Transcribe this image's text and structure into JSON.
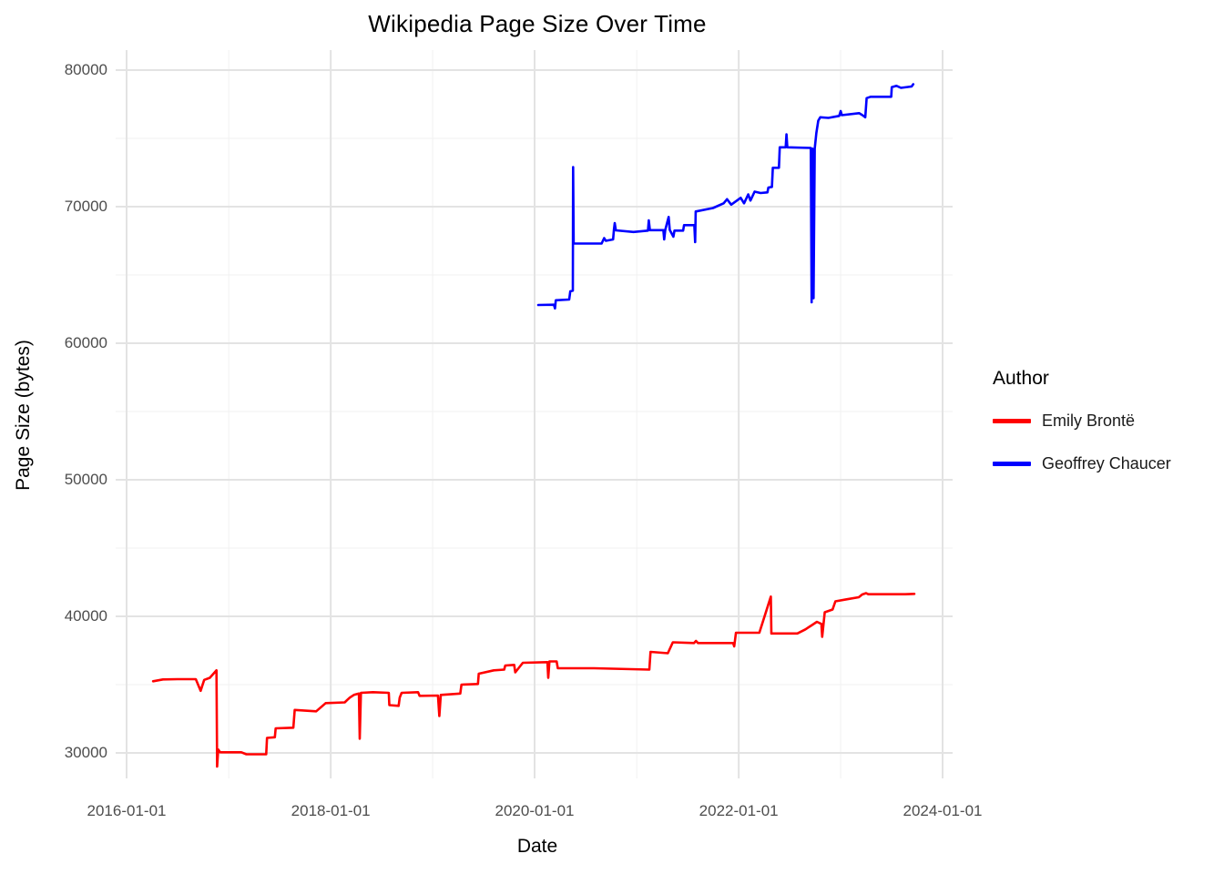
{
  "chart_data": {
    "type": "line",
    "title": "Wikipedia Page Size Over Time",
    "xlabel": "Date",
    "ylabel": "Page Size (bytes)",
    "grid": true,
    "legend_position": "right",
    "legend_title": "Author",
    "x_tick_labels": [
      "2016-01-01",
      "2018-01-01",
      "2020-01-01",
      "2022-01-01",
      "2024-01-01"
    ],
    "x_minor_ticks": [
      "2017-01-01",
      "2019-01-01",
      "2021-01-01",
      "2023-01-01"
    ],
    "y_tick_labels": [
      "30000",
      "40000",
      "50000",
      "60000",
      "70000",
      "80000"
    ],
    "y_ticks": [
      30000,
      40000,
      50000,
      60000,
      70000,
      80000
    ],
    "y_minor_ticks": [
      35000,
      45000,
      55000,
      65000,
      75000
    ],
    "ylim": [
      28800,
      80300
    ],
    "xlim": [
      "2016-01-01",
      "2024-01-01"
    ],
    "colors": {
      "major_grid": "#e3e3e3",
      "minor_grid": "#f1f1f1",
      "tick_text": "#4d4d4d"
    },
    "series": [
      {
        "name": "Emily Brontë",
        "color": "#ff0000",
        "points": [
          [
            "2016-04-05",
            35250
          ],
          [
            "2016-05-10",
            35380
          ],
          [
            "2016-07-01",
            35400
          ],
          [
            "2016-09-05",
            35400
          ],
          [
            "2016-09-22",
            34550
          ],
          [
            "2016-10-05",
            35350
          ],
          [
            "2016-10-25",
            35500
          ],
          [
            "2016-11-18",
            36050
          ],
          [
            "2016-11-20",
            29000
          ],
          [
            "2016-11-24",
            30250
          ],
          [
            "2016-12-01",
            30050
          ],
          [
            "2017-02-15",
            30050
          ],
          [
            "2017-03-05",
            29900
          ],
          [
            "2017-05-15",
            29900
          ],
          [
            "2017-05-18",
            31100
          ],
          [
            "2017-06-15",
            31150
          ],
          [
            "2017-06-18",
            31800
          ],
          [
            "2017-08-20",
            31850
          ],
          [
            "2017-08-25",
            33150
          ],
          [
            "2017-11-10",
            33050
          ],
          [
            "2017-12-14",
            33650
          ],
          [
            "2018-02-20",
            33700
          ],
          [
            "2018-03-10",
            34050
          ],
          [
            "2018-03-25",
            34250
          ],
          [
            "2018-04-12",
            34350
          ],
          [
            "2018-04-15",
            31050
          ],
          [
            "2018-04-19",
            34400
          ],
          [
            "2018-06-01",
            34450
          ],
          [
            "2018-07-28",
            34400
          ],
          [
            "2018-07-30",
            33500
          ],
          [
            "2018-09-01",
            33450
          ],
          [
            "2018-09-05",
            34050
          ],
          [
            "2018-09-12",
            34400
          ],
          [
            "2018-11-10",
            34450
          ],
          [
            "2018-11-15",
            34180
          ],
          [
            "2019-01-20",
            34200
          ],
          [
            "2019-01-25",
            32700
          ],
          [
            "2019-01-30",
            34250
          ],
          [
            "2019-04-10",
            34350
          ],
          [
            "2019-04-14",
            35000
          ],
          [
            "2019-06-12",
            35050
          ],
          [
            "2019-06-15",
            35800
          ],
          [
            "2019-08-08",
            36050
          ],
          [
            "2019-09-14",
            36100
          ],
          [
            "2019-09-18",
            36400
          ],
          [
            "2019-10-20",
            36450
          ],
          [
            "2019-10-24",
            35900
          ],
          [
            "2019-11-20",
            36600
          ],
          [
            "2020-02-16",
            36650
          ],
          [
            "2020-02-19",
            35500
          ],
          [
            "2020-02-23",
            36700
          ],
          [
            "2020-03-20",
            36700
          ],
          [
            "2020-03-24",
            36200
          ],
          [
            "2020-08-01",
            36200
          ],
          [
            "2021-02-15",
            36100
          ],
          [
            "2021-02-19",
            37400
          ],
          [
            "2021-04-22",
            37300
          ],
          [
            "2021-05-10",
            38100
          ],
          [
            "2021-07-25",
            38050
          ],
          [
            "2021-08-01",
            38200
          ],
          [
            "2021-08-08",
            38050
          ],
          [
            "2021-12-12",
            38050
          ],
          [
            "2021-12-16",
            37800
          ],
          [
            "2021-12-22",
            38800
          ],
          [
            "2022-03-16",
            38800
          ],
          [
            "2022-04-26",
            41450
          ],
          [
            "2022-04-28",
            38750
          ],
          [
            "2022-07-30",
            38750
          ],
          [
            "2022-08-28",
            39050
          ],
          [
            "2022-10-08",
            39600
          ],
          [
            "2022-10-24",
            39450
          ],
          [
            "2022-10-27",
            38500
          ],
          [
            "2022-11-05",
            40300
          ],
          [
            "2022-12-03",
            40500
          ],
          [
            "2022-12-13",
            41100
          ],
          [
            "2023-01-22",
            41250
          ],
          [
            "2023-03-07",
            41400
          ],
          [
            "2023-03-19",
            41600
          ],
          [
            "2023-04-02",
            41700
          ],
          [
            "2023-04-10",
            41620
          ],
          [
            "2023-08-20",
            41620
          ],
          [
            "2023-09-22",
            41650
          ]
        ]
      },
      {
        "name": "Geoffrey Chaucer",
        "color": "#0000ff",
        "points": [
          [
            "2020-01-14",
            62800
          ],
          [
            "2020-03-10",
            62820
          ],
          [
            "2020-03-14",
            62550
          ],
          [
            "2020-03-17",
            63150
          ],
          [
            "2020-05-04",
            63200
          ],
          [
            "2020-05-08",
            63800
          ],
          [
            "2020-05-17",
            63850
          ],
          [
            "2020-05-18",
            72900
          ],
          [
            "2020-05-20",
            67300
          ],
          [
            "2020-08-28",
            67300
          ],
          [
            "2020-09-06",
            67700
          ],
          [
            "2020-09-12",
            67500
          ],
          [
            "2020-10-08",
            67600
          ],
          [
            "2020-10-11",
            68300
          ],
          [
            "2020-10-14",
            68800
          ],
          [
            "2020-10-18",
            68270
          ],
          [
            "2020-12-20",
            68150
          ],
          [
            "2021-02-10",
            68250
          ],
          [
            "2021-02-13",
            69000
          ],
          [
            "2021-02-17",
            68280
          ],
          [
            "2021-04-06",
            68280
          ],
          [
            "2021-04-09",
            67600
          ],
          [
            "2021-04-13",
            68300
          ],
          [
            "2021-04-25",
            69250
          ],
          [
            "2021-04-29",
            68300
          ],
          [
            "2021-05-12",
            67800
          ],
          [
            "2021-05-16",
            68250
          ],
          [
            "2021-06-16",
            68250
          ],
          [
            "2021-06-19",
            68650
          ],
          [
            "2021-07-26",
            68650
          ],
          [
            "2021-07-29",
            67400
          ],
          [
            "2021-07-31",
            69650
          ],
          [
            "2021-10-01",
            69900
          ],
          [
            "2021-11-08",
            70250
          ],
          [
            "2021-11-20",
            70550
          ],
          [
            "2021-12-05",
            70150
          ],
          [
            "2022-01-08",
            70650
          ],
          [
            "2022-01-20",
            70250
          ],
          [
            "2022-02-04",
            70900
          ],
          [
            "2022-02-12",
            70450
          ],
          [
            "2022-02-27",
            71100
          ],
          [
            "2022-03-20",
            71000
          ],
          [
            "2022-04-14",
            71050
          ],
          [
            "2022-04-17",
            71400
          ],
          [
            "2022-04-30",
            71450
          ],
          [
            "2022-05-03",
            72850
          ],
          [
            "2022-05-25",
            72850
          ],
          [
            "2022-05-28",
            74350
          ],
          [
            "2022-06-18",
            74350
          ],
          [
            "2022-06-21",
            75300
          ],
          [
            "2022-06-24",
            74350
          ],
          [
            "2022-09-16",
            74300
          ],
          [
            "2022-09-19",
            63000
          ],
          [
            "2022-09-22",
            74250
          ],
          [
            "2022-09-26",
            63300
          ],
          [
            "2022-09-30",
            74250
          ],
          [
            "2022-10-06",
            75400
          ],
          [
            "2022-10-13",
            76300
          ],
          [
            "2022-10-20",
            76550
          ],
          [
            "2022-11-18",
            76500
          ],
          [
            "2022-12-27",
            76650
          ],
          [
            "2023-01-01",
            77000
          ],
          [
            "2023-01-05",
            76700
          ],
          [
            "2023-03-08",
            76850
          ],
          [
            "2023-03-20",
            76700
          ],
          [
            "2023-03-30",
            76550
          ],
          [
            "2023-04-04",
            77950
          ],
          [
            "2023-04-18",
            78050
          ],
          [
            "2023-07-01",
            78050
          ],
          [
            "2023-07-03",
            78750
          ],
          [
            "2023-07-20",
            78850
          ],
          [
            "2023-08-05",
            78700
          ],
          [
            "2023-09-12",
            78800
          ],
          [
            "2023-09-18",
            78970
          ]
        ]
      }
    ]
  }
}
